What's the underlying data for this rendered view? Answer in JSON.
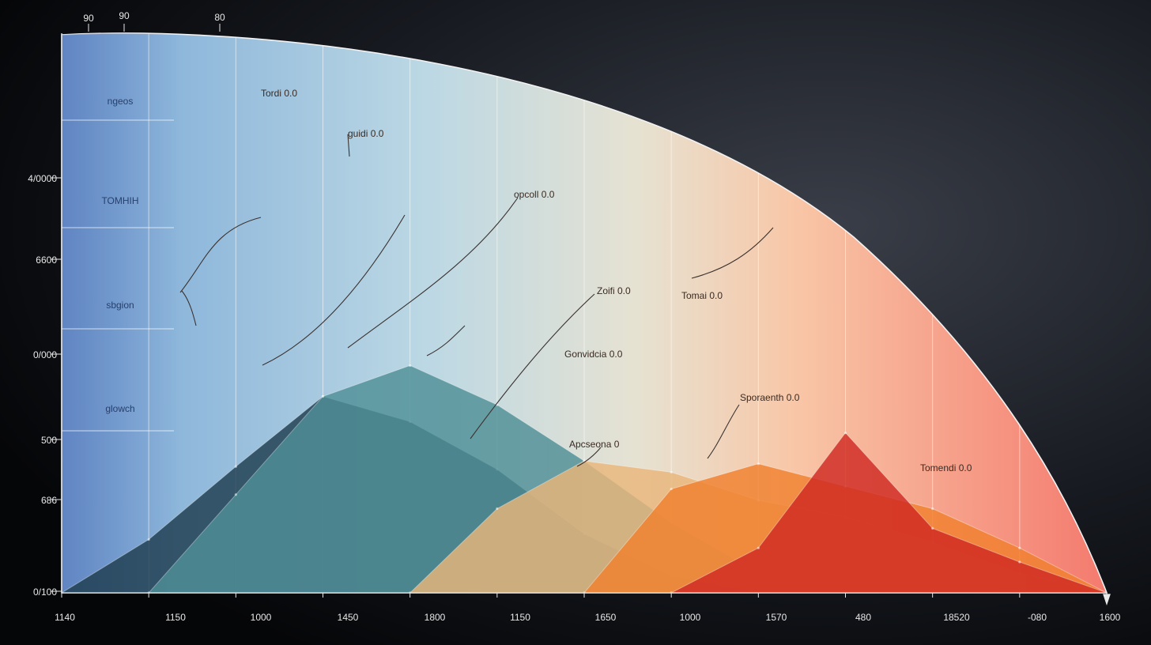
{
  "chart_data": {
    "type": "area",
    "title": "",
    "xlabel": "",
    "ylabel": "",
    "x_ticks": [
      "1140",
      "1150",
      "1000",
      "1450",
      "1800",
      "1150",
      "1650",
      "1000",
      "1570",
      "480",
      "18520",
      "-080",
      "1600"
    ],
    "y_ticks": [
      "4/0000",
      "6600",
      "0/000",
      "500",
      "686",
      "0/100"
    ],
    "top_ticks": [
      "90",
      "90",
      "80"
    ],
    "band_labels": [
      "ngeos",
      "TOMHIH",
      "sbgion",
      "glowch"
    ],
    "annotations": [
      "Tordi 0.0",
      "guidi 0.0",
      "opcoll 0.0",
      "Zoifi 0.0",
      "Tomai 0.0",
      "Gonvidcia 0.0",
      "Sporaenth 0.0",
      "Apcseona 0",
      "Tomendi 0.0"
    ],
    "series": [
      {
        "color": "#1f3d4f",
        "x": [
          0,
          1,
          2,
          3,
          4,
          5,
          6,
          7,
          8
        ],
        "y": [
          0,
          950,
          2250,
          3500,
          3050,
          2200,
          1050,
          300,
          0
        ]
      },
      {
        "color": "#4f8f96",
        "x": [
          1,
          2,
          3,
          4,
          5,
          6,
          7,
          8,
          9
        ],
        "y": [
          0,
          1750,
          3500,
          4050,
          3350,
          2350,
          1250,
          350,
          0
        ]
      },
      {
        "color": "#e9b67a",
        "x": [
          4,
          5,
          6,
          7,
          8,
          9,
          10,
          11,
          12
        ],
        "y": [
          0,
          1500,
          2350,
          2150,
          1650,
          1350,
          900,
          350,
          0
        ]
      },
      {
        "color": "#f0802e",
        "x": [
          6,
          7,
          8,
          9,
          10,
          11,
          12
        ],
        "y": [
          0,
          1850,
          2300,
          1900,
          1500,
          800,
          0
        ]
      },
      {
        "color": "#cf2a22",
        "x": [
          7,
          8,
          9,
          10,
          11,
          12
        ],
        "y": [
          0,
          800,
          2850,
          1150,
          550,
          0
        ]
      }
    ],
    "colors": {
      "envelope_start": "#7fa8d8",
      "envelope_mid": "#d3e6e8",
      "envelope_end": "#f47a6e",
      "axis": "#e8e8e8"
    },
    "ylim": [
      0,
      10000
    ],
    "grid": true,
    "legend": "none"
  }
}
